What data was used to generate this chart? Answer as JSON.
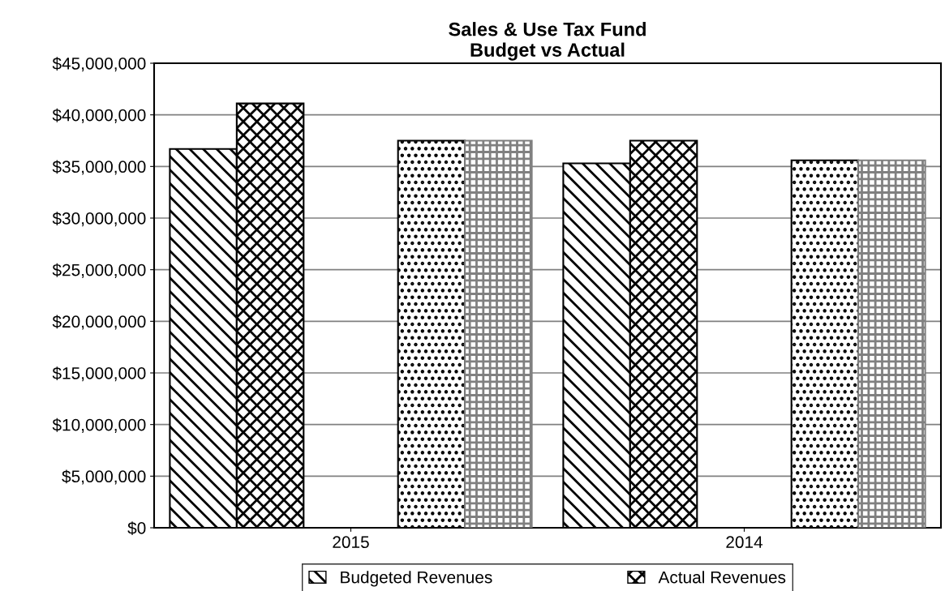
{
  "chart_data": {
    "type": "bar",
    "title": "Sales & Use Tax Fund\nBudget vs Actual",
    "categories": [
      "2015",
      "2014"
    ],
    "series": [
      {
        "name": "Budgeted Revenues",
        "color": "#000000",
        "values": [
          36700000,
          35300000
        ]
      },
      {
        "name": "Actual Revenues",
        "color": "#000000",
        "values": [
          41100000,
          37500000
        ]
      },
      {
        "color": "#000000",
        "values": [
          37500000,
          35600000
        ]
      },
      {
        "color": "#808080",
        "values": [
          37500000,
          35600000
        ]
      }
    ],
    "ylim": [
      0,
      45000000
    ],
    "yticks": [
      {
        "value": 0,
        "label": "$0"
      },
      {
        "value": 5000000,
        "label": "$5,000,000"
      },
      {
        "value": 10000000,
        "label": "$10,000,000"
      },
      {
        "value": 15000000,
        "label": "$15,000,000"
      },
      {
        "value": 20000000,
        "label": "$20,000,000"
      },
      {
        "value": 25000000,
        "label": "$25,000,000"
      },
      {
        "value": 30000000,
        "label": "$30,000,000"
      },
      {
        "value": 35000000,
        "label": "$35,000,000"
      },
      {
        "value": 40000000,
        "label": "$40,000,000"
      },
      {
        "value": 45000000,
        "label": "$45,000,000"
      }
    ],
    "grid": "y",
    "legend": "bottom"
  }
}
